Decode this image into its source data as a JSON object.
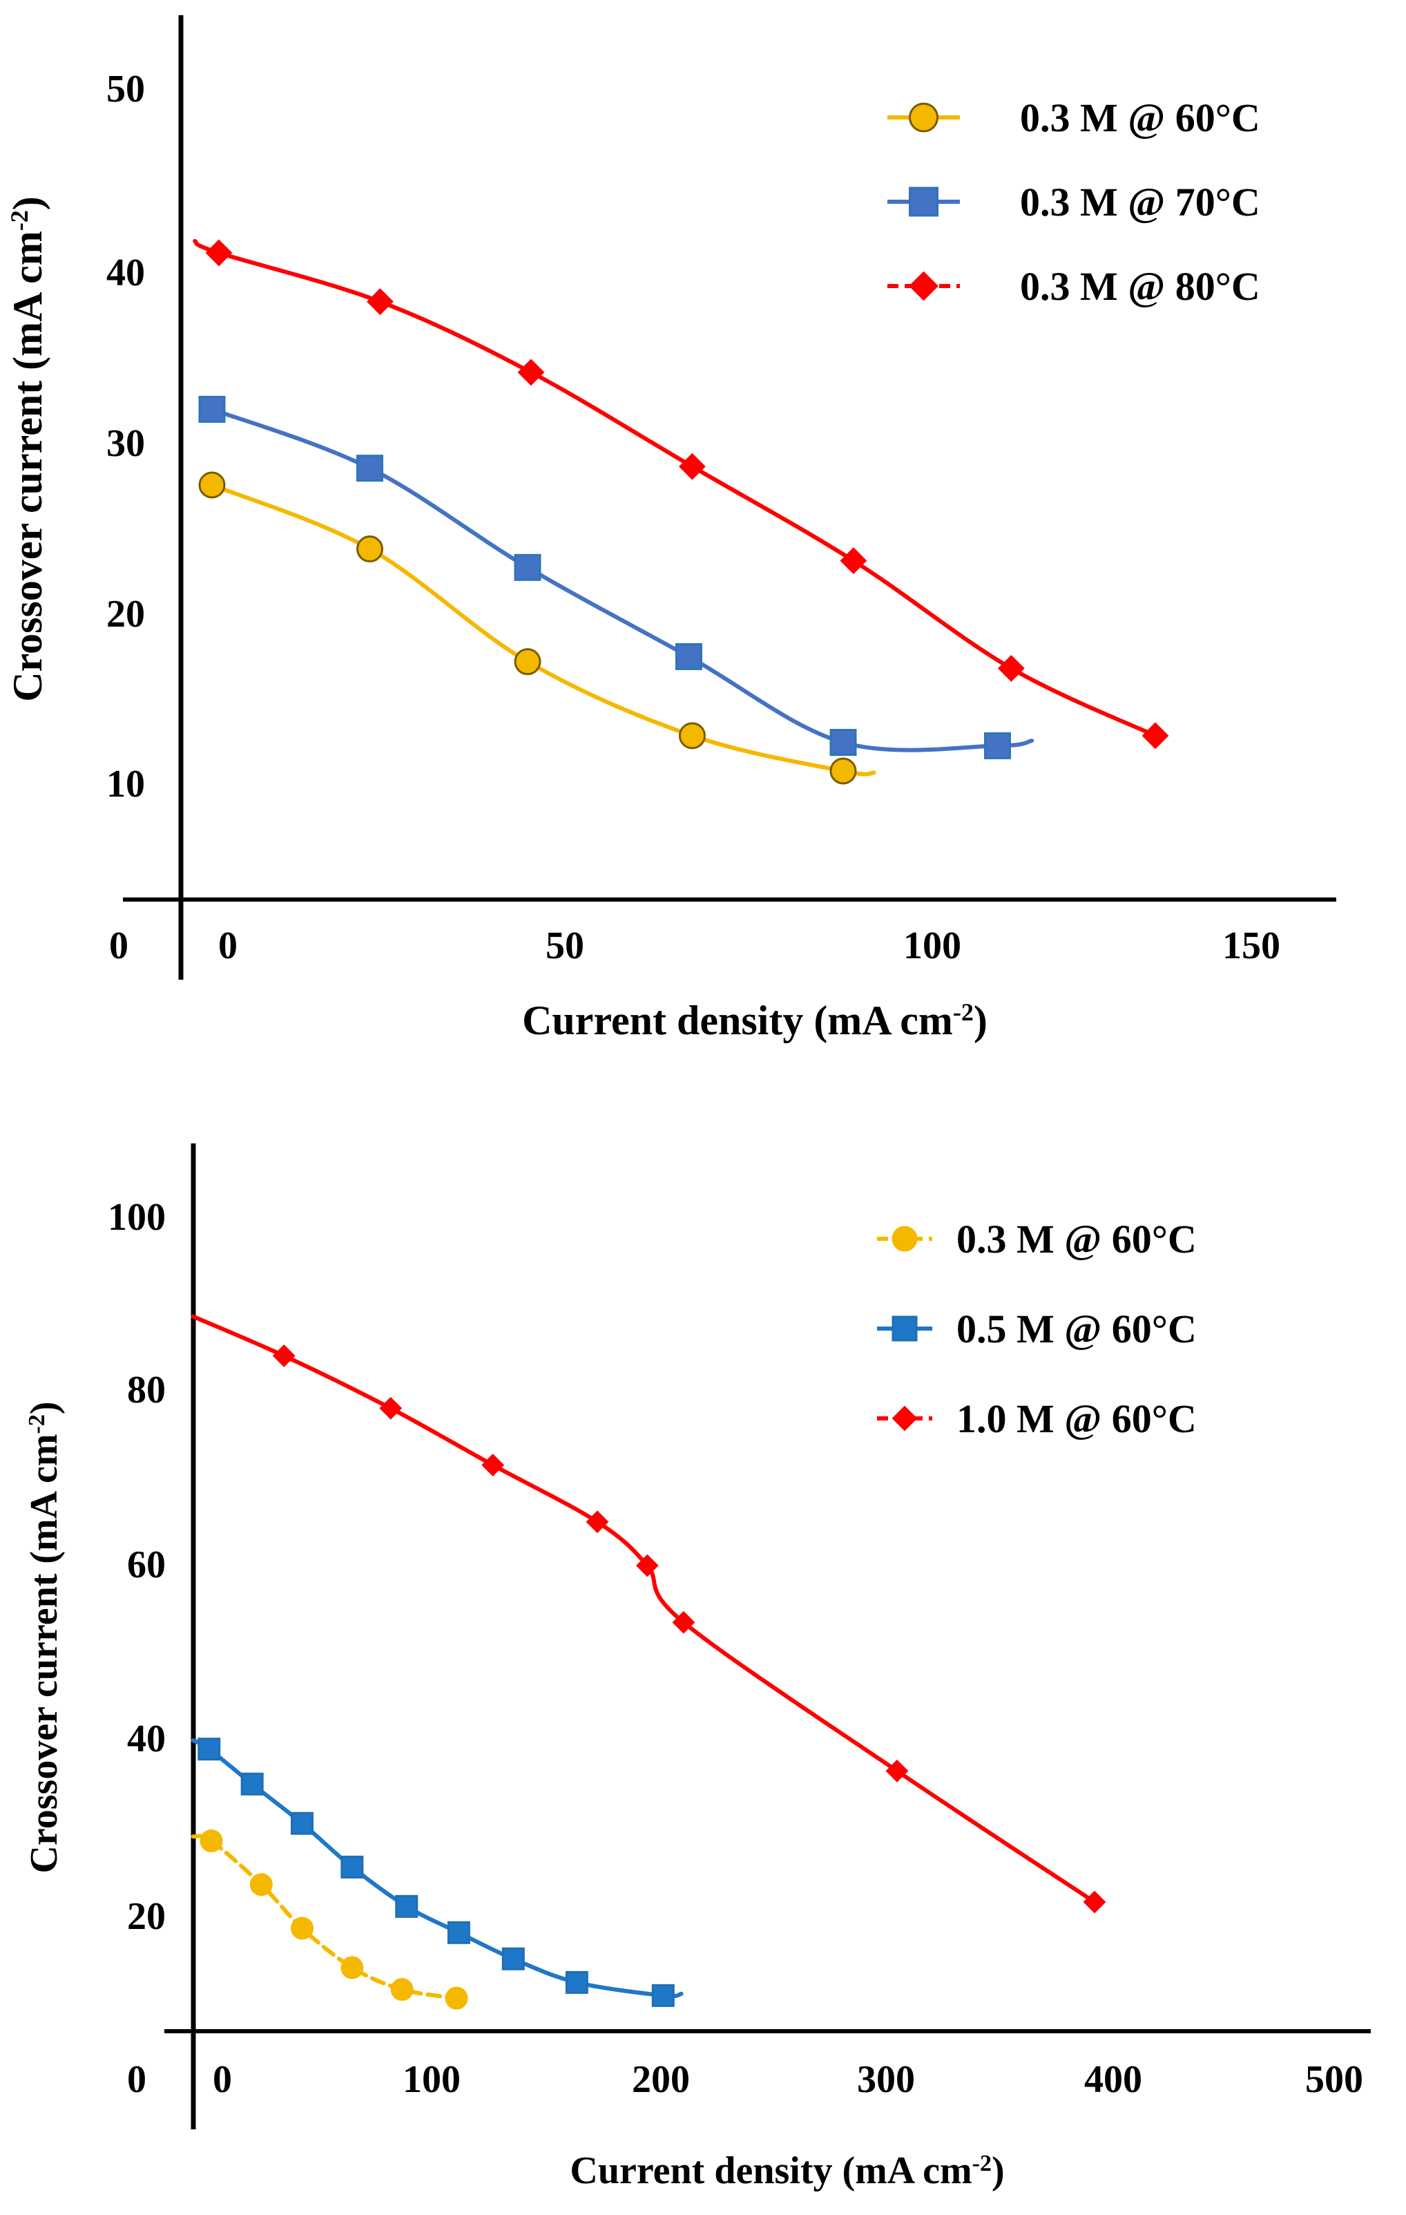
{
  "chart_data": [
    {
      "type": "line",
      "xlabel": "Current density (mA cm",
      "xlabel_sup": "-2",
      "xlabel_end": ")",
      "ylabel": "Crossover current (mA cm",
      "ylabel_sup": "-2",
      "ylabel_end": ")",
      "xlim": [
        -5,
        155
      ],
      "ylim": [
        3,
        55
      ],
      "x_ticks": [
        "0",
        "50",
        "100",
        "150"
      ],
      "y_ticks": [
        "10",
        "20",
        "30",
        "40",
        "50"
      ],
      "origin_label": "0",
      "legend_position": "top-right",
      "series": [
        {
          "name": "0.3 M @ 60°C",
          "color": "#f5b800",
          "edge": "#7a5c00",
          "marker": "circle",
          "dashed": false,
          "x": [
            -2.5,
            20.5,
            43.5,
            67.5,
            89.5,
            94
          ],
          "y": [
            27.7,
            23.9,
            17.2,
            12.8,
            10.7,
            10.6
          ]
        },
        {
          "name": "0.3 M @ 70°C",
          "color": "#4472c4",
          "edge": "#2e75b6",
          "marker": "square",
          "dashed": false,
          "x": [
            -2.5,
            20.5,
            43.5,
            67,
            89.5,
            112,
            117
          ],
          "y": [
            32.2,
            28.7,
            22.8,
            17.5,
            12.4,
            12.2,
            12.5
          ]
        },
        {
          "name": "0.3 M @ 80°C",
          "color": "#ff0000",
          "edge": "#ff0000",
          "marker": "diamond",
          "dashed": false,
          "x": [
            -5,
            -1.5,
            22,
            44,
            67.5,
            91,
            114,
            135
          ],
          "y": [
            42.2,
            41.5,
            38.6,
            34.4,
            28.8,
            23.2,
            16.8,
            12.8
          ]
        }
      ]
    },
    {
      "type": "line",
      "xlabel": "Current density (mA cm",
      "xlabel_sup": "-2",
      "xlabel_end": ")",
      "ylabel": "Crossover current (mA cm",
      "ylabel_sup": "-2",
      "ylabel_end": ")",
      "xlim": [
        -10,
        520
      ],
      "ylim": [
        6,
        108
      ],
      "x_ticks": [
        "0",
        "100",
        "200",
        "300",
        "400",
        "500"
      ],
      "y_ticks": [
        "20",
        "40",
        "60",
        "80",
        "100"
      ],
      "origin_label": "0",
      "legend_position": "top-right",
      "series": [
        {
          "name": "0.3 M @ 60°C",
          "color": "#f5b800",
          "edge": "#f5b800",
          "marker": "circle",
          "dashed": true,
          "x": [
            -10,
            -2,
            20,
            38,
            60,
            82,
            106
          ],
          "y": [
            29,
            28.5,
            23.5,
            18.5,
            14,
            11.5,
            10.5
          ]
        },
        {
          "name": "0.5 M @ 60°C",
          "color": "#1f77c8",
          "edge": "#1f6fb5",
          "marker": "square",
          "dashed": false,
          "x": [
            -10,
            -3,
            16,
            38,
            60,
            84,
            107,
            131,
            159,
            197,
            205
          ],
          "y": [
            40,
            39,
            35,
            30.5,
            25.5,
            21,
            18,
            15,
            12.3,
            10.8,
            11
          ]
        },
        {
          "name": "1.0 M @ 60°C",
          "color": "#ff0000",
          "edge": "#ff0000",
          "marker": "diamond",
          "dashed": false,
          "x": [
            -10,
            30,
            77,
            122,
            168,
            190,
            206,
            300,
            387
          ],
          "y": [
            88.5,
            84,
            78,
            71.5,
            65,
            60,
            53.5,
            36.5,
            21.5
          ]
        }
      ]
    }
  ]
}
